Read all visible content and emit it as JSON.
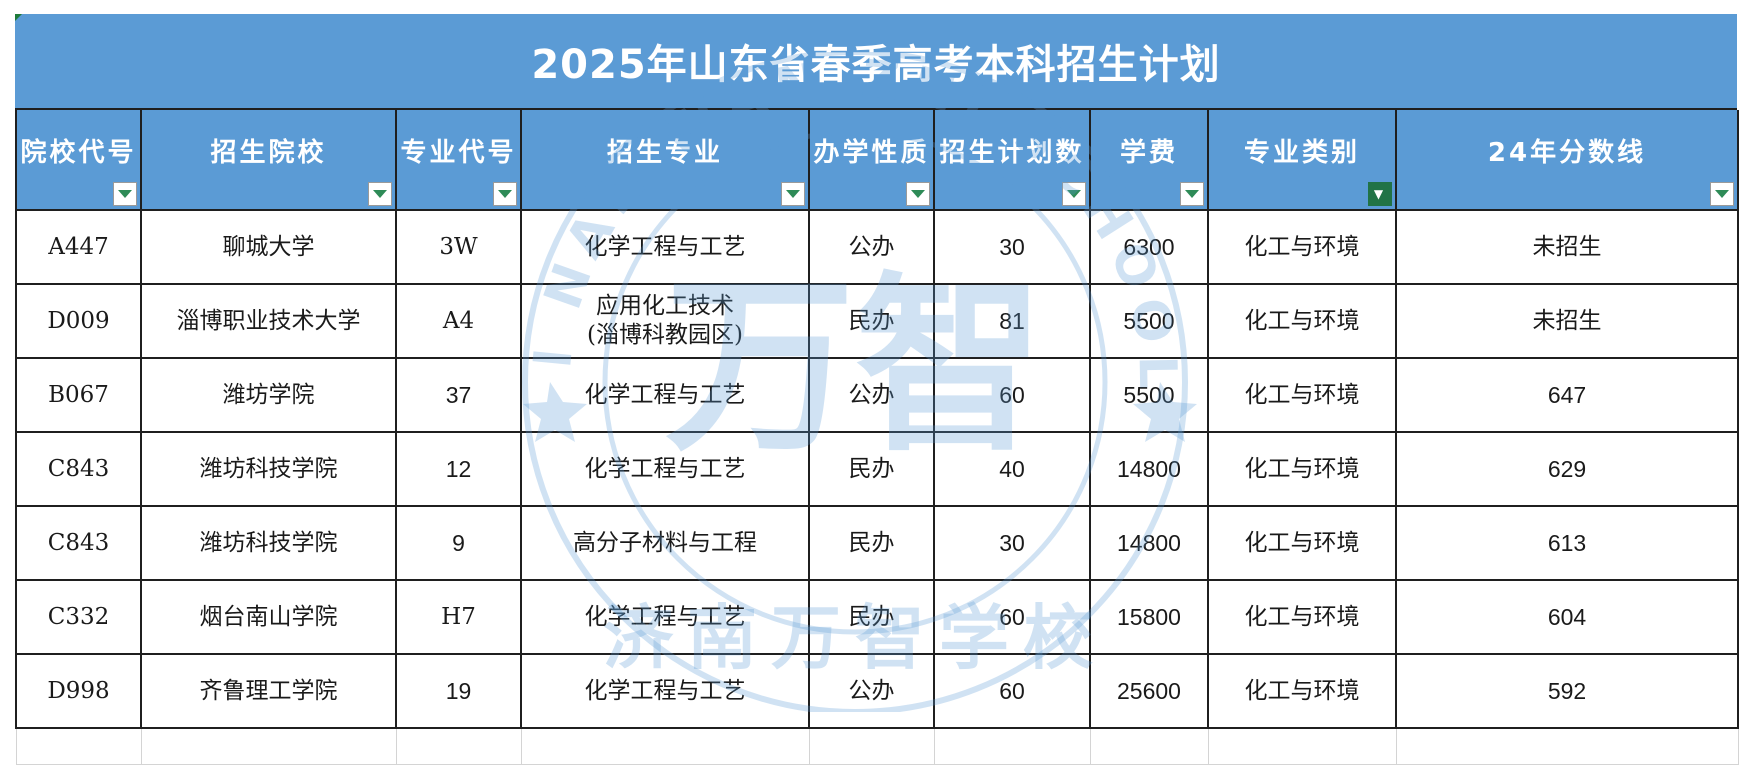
{
  "title": "2025年山东省春季高考本科招生计划",
  "columns": [
    {
      "label": "院校代号",
      "filter_active": false
    },
    {
      "label": "招生院校",
      "filter_active": false
    },
    {
      "label": "专业代号",
      "filter_active": false
    },
    {
      "label": "招生专业",
      "filter_active": false
    },
    {
      "label": "办学性质",
      "filter_active": false
    },
    {
      "label": "招生计划数",
      "filter_active": false
    },
    {
      "label": "学费",
      "filter_active": false
    },
    {
      "label": "专业类别",
      "filter_active": true
    },
    {
      "label": "24年分数线",
      "filter_active": false
    }
  ],
  "rows": [
    {
      "code": "A447",
      "school": "聊城大学",
      "major_code": "3W",
      "major": [
        "化学工程与工艺"
      ],
      "nature": "公办",
      "plan": "30",
      "fee": "6300",
      "category": "化工与环境",
      "score": "未招生"
    },
    {
      "code": "D009",
      "school": "淄博职业技术大学",
      "major_code": "A4",
      "major": [
        "应用化工技术",
        "(淄博科教园区)"
      ],
      "nature": "民办",
      "plan": "81",
      "fee": "5500",
      "category": "化工与环境",
      "score": "未招生"
    },
    {
      "code": "B067",
      "school": "潍坊学院",
      "major_code": "37",
      "major": [
        "化学工程与工艺"
      ],
      "nature": "公办",
      "plan": "60",
      "fee": "5500",
      "category": "化工与环境",
      "score": "647"
    },
    {
      "code": "C843",
      "school": "潍坊科技学院",
      "major_code": "12",
      "major": [
        "化学工程与工艺"
      ],
      "nature": "民办",
      "plan": "40",
      "fee": "14800",
      "category": "化工与环境",
      "score": "629"
    },
    {
      "code": "C843",
      "school": "潍坊科技学院",
      "major_code": "9",
      "major": [
        "高分子材料与工程"
      ],
      "nature": "民办",
      "plan": "30",
      "fee": "14800",
      "category": "化工与环境",
      "score": "613"
    },
    {
      "code": "C332",
      "school": "烟台南山学院",
      "major_code": "H7",
      "major": [
        "化学工程与工艺"
      ],
      "nature": "民办",
      "plan": "60",
      "fee": "15800",
      "category": "化工与环境",
      "score": "604"
    },
    {
      "code": "D998",
      "school": "齐鲁理工学院",
      "major_code": "19",
      "major": [
        "化学工程与工艺"
      ],
      "nature": "公办",
      "plan": "60",
      "fee": "25600",
      "category": "化工与环境",
      "score": "592"
    }
  ],
  "watermark": {
    "text_ring": "JI NAN WAN ZHI SCHOOL",
    "text_cn": "济南万智学校",
    "center_glyph": "万智",
    "color": "#5b9bd5"
  },
  "colors": {
    "header_bg": "#5b9bd5",
    "header_text": "#ffffff",
    "filter_active": "#217346",
    "filter_arrow": "#2e8b57"
  }
}
